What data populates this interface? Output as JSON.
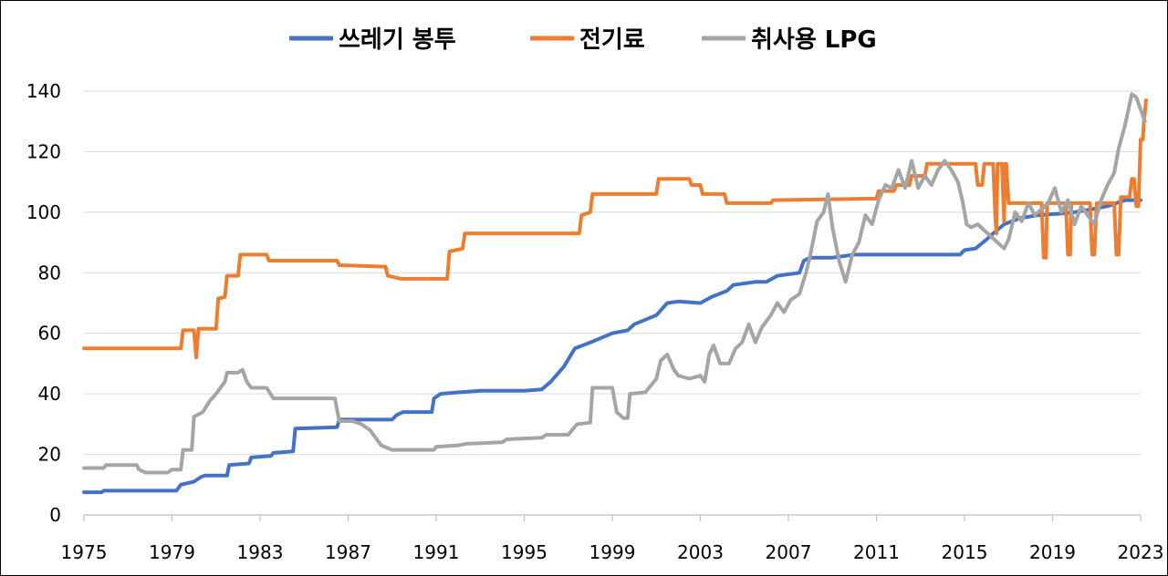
{
  "chart_data": {
    "type": "line",
    "title": "",
    "xlabel": "",
    "ylabel": "",
    "xlim": [
      1975,
      2023
    ],
    "ylim": [
      0,
      140
    ],
    "x_ticks": [
      1975,
      1979,
      1983,
      1987,
      1991,
      1995,
      1999,
      2003,
      2007,
      2011,
      2015,
      2019,
      2023
    ],
    "y_ticks": [
      0,
      20,
      40,
      60,
      80,
      100,
      120,
      140
    ],
    "grid": "horizontal",
    "legend_position": "top-center",
    "series": [
      {
        "name": "쓰레기 봉투",
        "color": "#4472C4",
        "points": [
          [
            1975,
            7.5
          ],
          [
            1975.8,
            7.5
          ],
          [
            1975.9,
            8
          ],
          [
            1979.2,
            8
          ],
          [
            1979.4,
            10
          ],
          [
            1980.0,
            11
          ],
          [
            1980.3,
            12.5
          ],
          [
            1980.5,
            13
          ],
          [
            1981.5,
            13
          ],
          [
            1981.6,
            16.5
          ],
          [
            1982.5,
            17
          ],
          [
            1982.6,
            19
          ],
          [
            1983.5,
            19.5
          ],
          [
            1983.6,
            20.5
          ],
          [
            1984.5,
            21
          ],
          [
            1984.6,
            28.5
          ],
          [
            1986.5,
            29
          ],
          [
            1986.6,
            31.5
          ],
          [
            1989.0,
            31.5
          ],
          [
            1989.2,
            33
          ],
          [
            1989.5,
            34
          ],
          [
            1990.8,
            34
          ],
          [
            1990.9,
            38.5
          ],
          [
            1991.2,
            40
          ],
          [
            1992,
            40.5
          ],
          [
            1993,
            41
          ],
          [
            1995,
            41
          ],
          [
            1995.8,
            41.5
          ],
          [
            1996.2,
            44
          ],
          [
            1996.8,
            49
          ],
          [
            1997.3,
            55
          ],
          [
            1998.0,
            57
          ],
          [
            1999.0,
            60
          ],
          [
            1999.7,
            61
          ],
          [
            2000.0,
            63
          ],
          [
            2000.5,
            64.5
          ],
          [
            2001.0,
            66
          ],
          [
            2001.5,
            70
          ],
          [
            2002.0,
            70.5
          ],
          [
            2003.0,
            70
          ],
          [
            2003.5,
            72
          ],
          [
            2004.2,
            74
          ],
          [
            2004.5,
            76
          ],
          [
            2005.5,
            77
          ],
          [
            2006.0,
            77
          ],
          [
            2006.5,
            79
          ],
          [
            2007.5,
            80
          ],
          [
            2007.7,
            84
          ],
          [
            2008,
            85
          ],
          [
            2009,
            85
          ],
          [
            2010,
            86
          ],
          [
            2014,
            86
          ],
          [
            2014.8,
            86
          ],
          [
            2015.0,
            87.5
          ],
          [
            2015.5,
            88
          ],
          [
            2016.0,
            91
          ],
          [
            2016.3,
            93
          ],
          [
            2016.8,
            96
          ],
          [
            2017.5,
            98
          ],
          [
            2018.3,
            99
          ],
          [
            2019.3,
            99.5
          ],
          [
            2020.0,
            100
          ],
          [
            2020.8,
            101
          ],
          [
            2021.5,
            102
          ],
          [
            2022.3,
            104
          ],
          [
            2023,
            104
          ]
        ]
      },
      {
        "name": "전기료",
        "color": "#ED7D31",
        "points": [
          [
            1975,
            55
          ],
          [
            1979.4,
            55
          ],
          [
            1979.5,
            61
          ],
          [
            1980.0,
            61
          ],
          [
            1980.1,
            52
          ],
          [
            1980.2,
            61.5
          ],
          [
            1981.0,
            61.5
          ],
          [
            1981.1,
            71.5
          ],
          [
            1981.4,
            72
          ],
          [
            1981.5,
            79
          ],
          [
            1982.0,
            79
          ],
          [
            1982.1,
            86
          ],
          [
            1983.3,
            86
          ],
          [
            1983.4,
            84
          ],
          [
            1986.5,
            84
          ],
          [
            1986.6,
            82.5
          ],
          [
            1988.7,
            82
          ],
          [
            1988.8,
            79
          ],
          [
            1989.4,
            78
          ],
          [
            1991.5,
            78
          ],
          [
            1991.6,
            87
          ],
          [
            1992.2,
            88
          ],
          [
            1992.3,
            93
          ],
          [
            1997.5,
            93
          ],
          [
            1997.6,
            99
          ],
          [
            1998.0,
            100
          ],
          [
            1998.1,
            106
          ],
          [
            2001.0,
            106
          ],
          [
            2001.1,
            111
          ],
          [
            2002.5,
            111
          ],
          [
            2002.6,
            109
          ],
          [
            2003.0,
            109
          ],
          [
            2003.1,
            106
          ],
          [
            2004.1,
            106
          ],
          [
            2004.2,
            103
          ],
          [
            2006.2,
            103
          ],
          [
            2006.3,
            104
          ],
          [
            2011.0,
            104.5
          ],
          [
            2011.1,
            107
          ],
          [
            2011.8,
            107
          ],
          [
            2011.9,
            109
          ],
          [
            2012.5,
            109
          ],
          [
            2012.6,
            112
          ],
          [
            2013.2,
            112
          ],
          [
            2013.3,
            116
          ],
          [
            2015.5,
            116
          ],
          [
            2015.6,
            109
          ],
          [
            2015.8,
            109
          ],
          [
            2015.9,
            116
          ],
          [
            2016.3,
            116
          ],
          [
            2016.4,
            98
          ],
          [
            2016.45,
            93
          ],
          [
            2016.5,
            116
          ],
          [
            2016.7,
            116
          ],
          [
            2016.8,
            97
          ],
          [
            2016.85,
            116
          ],
          [
            2016.9,
            116
          ],
          [
            2017.0,
            103
          ],
          [
            2018.5,
            103
          ],
          [
            2018.6,
            85
          ],
          [
            2018.7,
            85
          ],
          [
            2018.75,
            103
          ],
          [
            2019.6,
            103
          ],
          [
            2019.7,
            86
          ],
          [
            2019.8,
            86
          ],
          [
            2019.85,
            103
          ],
          [
            2020.7,
            103
          ],
          [
            2020.8,
            86
          ],
          [
            2020.9,
            86
          ],
          [
            2021.0,
            103
          ],
          [
            2021.8,
            103
          ],
          [
            2021.9,
            86
          ],
          [
            2022.0,
            86
          ],
          [
            2022.1,
            105
          ],
          [
            2022.5,
            105
          ],
          [
            2022.6,
            111
          ],
          [
            2022.7,
            111
          ],
          [
            2022.8,
            102
          ],
          [
            2022.9,
            102
          ],
          [
            2023.0,
            124
          ],
          [
            2023.1,
            124
          ],
          [
            2023.15,
            130
          ],
          [
            2023.25,
            137
          ]
        ]
      },
      {
        "name": "취사용 LPG",
        "color": "#A5A5A5",
        "points": [
          [
            1975,
            15.5
          ],
          [
            1975.9,
            15.5
          ],
          [
            1976,
            16.5
          ],
          [
            1977.4,
            16.5
          ],
          [
            1977.5,
            15
          ],
          [
            1977.8,
            14
          ],
          [
            1978.8,
            14
          ],
          [
            1979.0,
            15
          ],
          [
            1979.4,
            15
          ],
          [
            1979.5,
            21.5
          ],
          [
            1979.9,
            21.5
          ],
          [
            1980.0,
            32.5
          ],
          [
            1980.4,
            34
          ],
          [
            1980.7,
            37.5
          ],
          [
            1981.0,
            40
          ],
          [
            1981.4,
            44
          ],
          [
            1981.5,
            47
          ],
          [
            1982.0,
            47
          ],
          [
            1982.2,
            48
          ],
          [
            1982.4,
            44
          ],
          [
            1982.6,
            42
          ],
          [
            1983.3,
            42
          ],
          [
            1983.6,
            38.5
          ],
          [
            1986.4,
            38.5
          ],
          [
            1986.6,
            31
          ],
          [
            1987.2,
            31
          ],
          [
            1987.6,
            30
          ],
          [
            1988.0,
            28
          ],
          [
            1988.5,
            23
          ],
          [
            1989.0,
            21.5
          ],
          [
            1990.9,
            21.5
          ],
          [
            1991.0,
            22.5
          ],
          [
            1992.0,
            23
          ],
          [
            1992.4,
            23.5
          ],
          [
            1994.0,
            24
          ],
          [
            1994.2,
            25
          ],
          [
            1995.8,
            25.5
          ],
          [
            1996.0,
            26.5
          ],
          [
            1997.0,
            26.5
          ],
          [
            1997.4,
            30
          ],
          [
            1998.0,
            30.5
          ],
          [
            1998.1,
            42
          ],
          [
            1999.0,
            42
          ],
          [
            1999.2,
            34
          ],
          [
            1999.5,
            32
          ],
          [
            1999.7,
            32
          ],
          [
            1999.8,
            40
          ],
          [
            2000.5,
            40.5
          ],
          [
            2001.0,
            45
          ],
          [
            2001.2,
            51
          ],
          [
            2001.5,
            53
          ],
          [
            2001.8,
            48
          ],
          [
            2002.0,
            46
          ],
          [
            2002.5,
            45
          ],
          [
            2003.0,
            46
          ],
          [
            2003.2,
            44
          ],
          [
            2003.4,
            53
          ],
          [
            2003.6,
            56
          ],
          [
            2003.9,
            50
          ],
          [
            2004.3,
            50
          ],
          [
            2004.6,
            55
          ],
          [
            2004.9,
            57
          ],
          [
            2005.2,
            63
          ],
          [
            2005.5,
            57
          ],
          [
            2005.8,
            62
          ],
          [
            2006.2,
            66
          ],
          [
            2006.5,
            70
          ],
          [
            2006.8,
            67
          ],
          [
            2007.1,
            71
          ],
          [
            2007.5,
            73
          ],
          [
            2007.8,
            80
          ],
          [
            2008.0,
            86
          ],
          [
            2008.3,
            97
          ],
          [
            2008.6,
            100
          ],
          [
            2008.8,
            106
          ],
          [
            2009.0,
            95
          ],
          [
            2009.3,
            84
          ],
          [
            2009.6,
            77
          ],
          [
            2009.9,
            86
          ],
          [
            2010.2,
            90
          ],
          [
            2010.5,
            99
          ],
          [
            2010.8,
            96
          ],
          [
            2011.1,
            104
          ],
          [
            2011.4,
            109
          ],
          [
            2011.7,
            108
          ],
          [
            2012.0,
            114
          ],
          [
            2012.3,
            108
          ],
          [
            2012.6,
            117
          ],
          [
            2012.9,
            108
          ],
          [
            2013.2,
            112
          ],
          [
            2013.5,
            109
          ],
          [
            2013.8,
            114
          ],
          [
            2014.1,
            117
          ],
          [
            2014.4,
            114
          ],
          [
            2014.7,
            110
          ],
          [
            2014.9,
            104
          ],
          [
            2015.1,
            96
          ],
          [
            2015.3,
            95
          ],
          [
            2015.6,
            96
          ],
          [
            2015.9,
            94
          ],
          [
            2016.2,
            92
          ],
          [
            2016.5,
            90
          ],
          [
            2016.8,
            88
          ],
          [
            2017.0,
            91
          ],
          [
            2017.3,
            100
          ],
          [
            2017.6,
            97
          ],
          [
            2017.9,
            103
          ],
          [
            2018.2,
            99
          ],
          [
            2018.5,
            101
          ],
          [
            2018.8,
            103
          ],
          [
            2019.1,
            108
          ],
          [
            2019.4,
            100
          ],
          [
            2019.7,
            104
          ],
          [
            2020.0,
            96
          ],
          [
            2020.3,
            102
          ],
          [
            2020.6,
            99
          ],
          [
            2020.9,
            96
          ],
          [
            2021.2,
            104
          ],
          [
            2021.5,
            109
          ],
          [
            2021.8,
            113
          ],
          [
            2022.0,
            121
          ],
          [
            2022.3,
            129
          ],
          [
            2022.6,
            139
          ],
          [
            2022.8,
            138
          ],
          [
            2023.0,
            134
          ],
          [
            2023.2,
            130
          ]
        ]
      }
    ]
  }
}
